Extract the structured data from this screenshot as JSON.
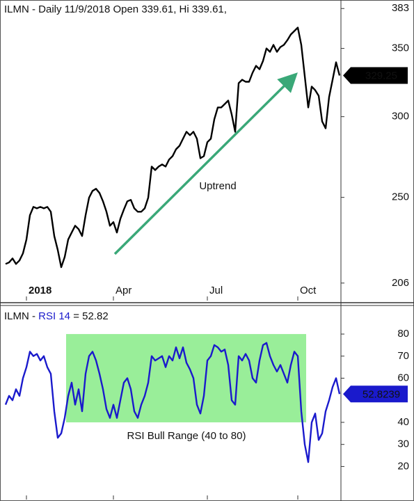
{
  "chart_data": [
    {
      "type": "line",
      "title": "ILMN - Daily 11/9/2018 Open 339.61, Hi 339.61,",
      "log_scale": true,
      "ylim": [
        198,
        388
      ],
      "yticks": [
        206,
        250,
        300,
        350,
        383
      ],
      "categories": [
        null,
        null,
        null,
        null,
        null,
        null,
        "2018",
        null,
        null,
        null,
        null,
        null,
        null,
        null,
        null,
        null,
        null,
        null,
        null,
        null,
        null,
        null,
        null,
        null,
        null,
        null,
        null,
        null,
        null,
        null,
        null,
        "Apr",
        null,
        null,
        null,
        null,
        null,
        null,
        null,
        null,
        null,
        null,
        null,
        null,
        null,
        null,
        null,
        null,
        null,
        null,
        null,
        null,
        null,
        null,
        null,
        null,
        null,
        null,
        "Jul",
        null,
        null,
        null,
        null,
        null,
        null,
        null,
        null,
        null,
        null,
        null,
        null,
        null,
        null,
        null,
        null,
        null,
        null,
        null,
        null,
        null,
        null,
        null,
        null,
        null,
        "Oct",
        null,
        null,
        null,
        null,
        null,
        null,
        null,
        null,
        null,
        null,
        null,
        null
      ],
      "annotations": [
        {
          "text": "Uptrend",
          "color": "#3aa878"
        }
      ],
      "series": [
        {
          "color": "#000000",
          "values": [
            215.1,
            215.8,
            217.8,
            215.1,
            216.8,
            220.3,
            227.3,
            240.1,
            244.7,
            243.9,
            244.7,
            243.9,
            244.7,
            242.0,
            229.1,
            222.0,
            213.5,
            218.5,
            227.3,
            230.9,
            234.5,
            232.7,
            229.1,
            240.1,
            249.8,
            253.7,
            254.9,
            252.5,
            247.8,
            242.0,
            234.5,
            236.4,
            230.9,
            238.2,
            243.2,
            247.8,
            248.6,
            243.9,
            242.0,
            242.0,
            243.9,
            249.8,
            268.0,
            265.9,
            268.0,
            269.3,
            268.0,
            272.3,
            274.4,
            278.7,
            280.9,
            285.4,
            289.9,
            287.7,
            289.9,
            285.4,
            273.1,
            274.4,
            283.2,
            285.4,
            298.2,
            306.3,
            306.3,
            308.7,
            311.1,
            301.5,
            289.9,
            323.6,
            326.1,
            324.6,
            324.6,
            331.3,
            336.5,
            333.9,
            340.2,
            350,
            347.3,
            352.8,
            347.3,
            351.1,
            352.8,
            356.6,
            361.2,
            364.0,
            366.9,
            352.8,
            328.7,
            306.3,
            321.1,
            318.5,
            314.5,
            296.8,
            292.2,
            313.6,
            326.1,
            339.2,
            329.25
          ]
        }
      ]
    },
    {
      "type": "line",
      "title": "ILMN -",
      "title_suffix": "= 52.82",
      "ylim": [
        5,
        92
      ],
      "yticks": [
        20,
        30,
        40,
        60,
        70,
        80
      ],
      "band": {
        "range": [
          40,
          80
        ],
        "label": "RSI Bull Range (40 to 80)",
        "color": "#99ee99",
        "label_color": "#4fb070"
      },
      "series": [
        {
          "name": "RSI 14",
          "color": "#1a1acc",
          "values": [
            48,
            52,
            50,
            55,
            52,
            60,
            65,
            72,
            70,
            71,
            68,
            70,
            65,
            62,
            45,
            33,
            35,
            42,
            52,
            58,
            48,
            55,
            45,
            62,
            70,
            72,
            68,
            62,
            55,
            46,
            42,
            48,
            42,
            50,
            58,
            60,
            55,
            45,
            42,
            48,
            52,
            58,
            70,
            68,
            69,
            70,
            65,
            70,
            68,
            74,
            69,
            74,
            67,
            64,
            60,
            48,
            44,
            52,
            68,
            70,
            75,
            74,
            72,
            73,
            66,
            50,
            48,
            70,
            68,
            71,
            68,
            60,
            58,
            68,
            75,
            76,
            70,
            66,
            63,
            66,
            62,
            58,
            66,
            72,
            70,
            45,
            30,
            22,
            40,
            44,
            32,
            35,
            45,
            50,
            56,
            60,
            52.8239
          ]
        }
      ]
    }
  ]
}
